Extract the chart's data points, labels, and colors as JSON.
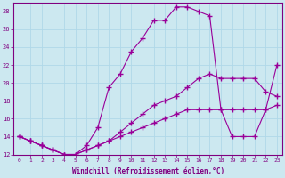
{
  "xlabel": "Windchill (Refroidissement éolien,°C)",
  "bg_color": "#cce8f0",
  "line_color": "#990099",
  "grid_color": "#b0d8e8",
  "line1_x": [
    0,
    1,
    2,
    3,
    4,
    5,
    6,
    7,
    8,
    9,
    10,
    11,
    12,
    13,
    14,
    15,
    16,
    17,
    18,
    19,
    20,
    21,
    22,
    23
  ],
  "line1_y": [
    14,
    13.5,
    13,
    12.5,
    12,
    12,
    13,
    15,
    19.5,
    21,
    23.5,
    25,
    27,
    27,
    28.5,
    28.5,
    28,
    27.5,
    17,
    14,
    14,
    14,
    17,
    22
  ],
  "line2_x": [
    0,
    1,
    2,
    3,
    4,
    5,
    6,
    7,
    8,
    9,
    10,
    11,
    12,
    13,
    14,
    15,
    16,
    17,
    18,
    19,
    20,
    21,
    22,
    23
  ],
  "line2_y": [
    14,
    13.5,
    13,
    12.5,
    12,
    12,
    12.5,
    13,
    13.5,
    14.5,
    15.5,
    16.5,
    17.5,
    18,
    18.5,
    19.5,
    20.5,
    21,
    20.5,
    20.5,
    20.5,
    20.5,
    19,
    18.5
  ],
  "line3_x": [
    0,
    1,
    2,
    3,
    4,
    5,
    6,
    7,
    8,
    9,
    10,
    11,
    12,
    13,
    14,
    15,
    16,
    17,
    18,
    19,
    20,
    21,
    22,
    23
  ],
  "line3_y": [
    14,
    13.5,
    13,
    12.5,
    12,
    12,
    12.5,
    13,
    13.5,
    14,
    14.5,
    15,
    15.5,
    16,
    16.5,
    17,
    17,
    17,
    17,
    17,
    17,
    17,
    17,
    17.5
  ],
  "xlim": [
    -0.5,
    23.5
  ],
  "ylim": [
    12,
    29
  ],
  "yticks": [
    12,
    14,
    16,
    18,
    20,
    22,
    24,
    26,
    28
  ],
  "xticks": [
    0,
    1,
    2,
    3,
    4,
    5,
    6,
    7,
    8,
    9,
    10,
    11,
    12,
    13,
    14,
    15,
    16,
    17,
    18,
    19,
    20,
    21,
    22,
    23
  ]
}
